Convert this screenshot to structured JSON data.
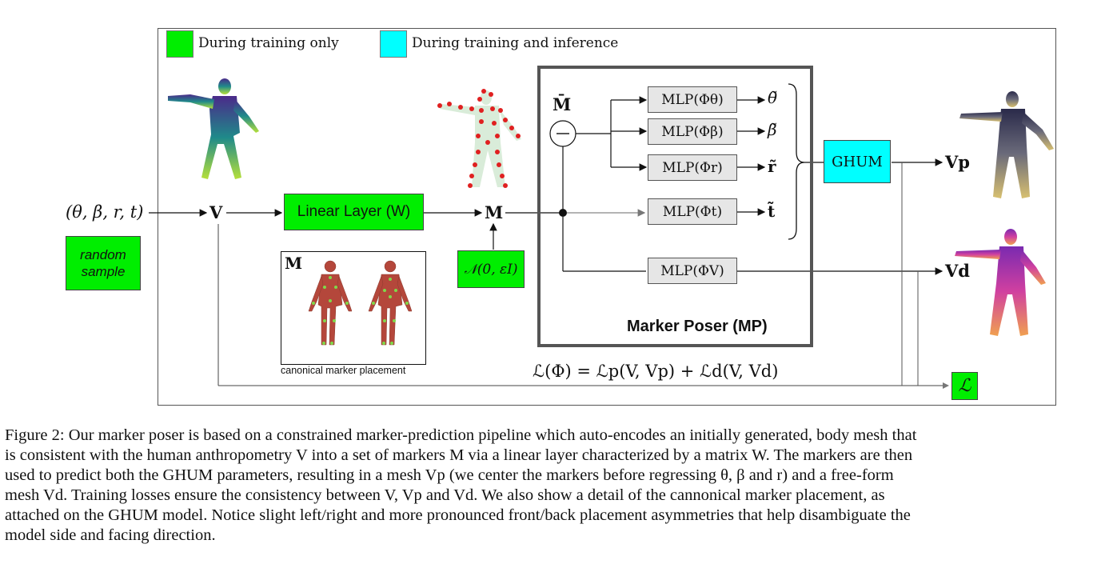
{
  "legend": {
    "training_only": "During training only",
    "training_inference": "During training and inference",
    "training_only_color": "#00ee00",
    "training_inference_color": "#00ffff"
  },
  "input": {
    "params": "(θ, β, r, t)",
    "random_sample": "random sample"
  },
  "nodes": {
    "v": "V",
    "m": "M",
    "m_bar": "M̄",
    "linear_layer": "Linear Layer (W)",
    "noise": "𝒩(0, εI)",
    "ghum": "GHUM",
    "vp": "Vp",
    "vd": "Vd",
    "loss_symbol": "ℒ",
    "marker_poser": "Marker Poser (MP)",
    "canonical_label": "canonical marker placement",
    "canonical_m": "M"
  },
  "mlps": [
    {
      "label": "MLP(Φθ)",
      "out": "θ̃"
    },
    {
      "label": "MLP(Φβ)",
      "out": "β̃"
    },
    {
      "label": "MLP(Φr)",
      "out": "r̃"
    },
    {
      "label": "MLP(Φt)",
      "out": "t̃"
    },
    {
      "label": "MLP(ΦV)",
      "out": ""
    }
  ],
  "loss_equation": "ℒ(Φ) = ℒp(V, Vp) + ℒd(V, Vd)",
  "caption": {
    "lines": [
      "Figure 2: Our marker poser is based on a constrained marker-prediction pipeline which auto-encodes an initially generated, body mesh that",
      "is consistent with the human anthropometry V into a set of markers M via a linear layer characterized by a matrix W. The markers are then",
      "used to predict both the GHUM parameters, resulting in a mesh Vp (we center the markers before regressing θ, β and r) and a free-form",
      "mesh Vd. Training losses ensure the consistency between V, Vp and Vd. We also show a detail of the cannonical marker placement, as",
      "attached on the GHUM model. Notice slight left/right and more pronounced front/back placement asymmetries that help disambiguate the",
      "model side and facing direction."
    ]
  }
}
